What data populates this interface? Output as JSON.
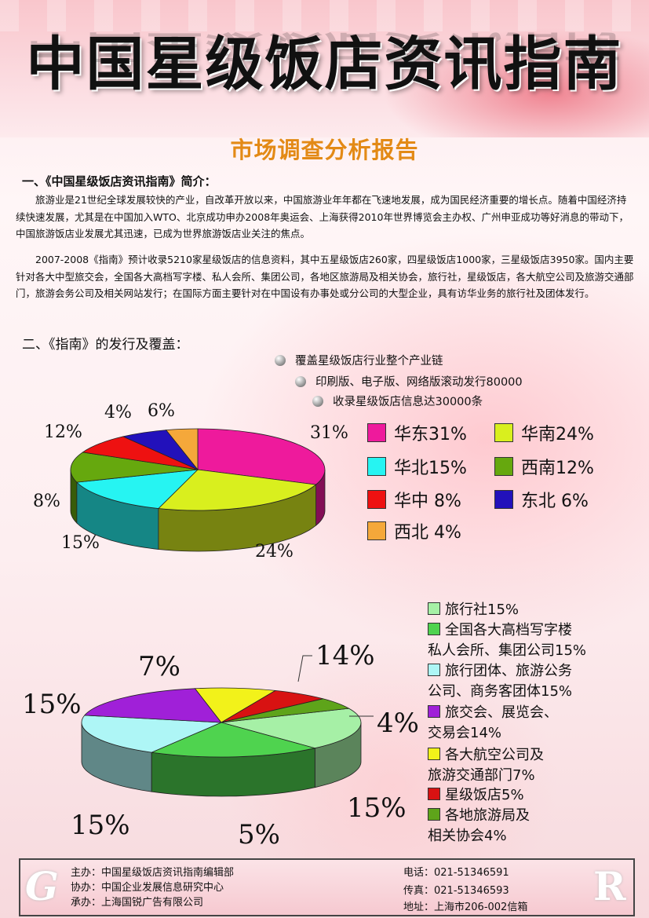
{
  "header": {
    "title": "中国星级饭店资讯指南",
    "subtitle": "市场调查分析报告"
  },
  "section1": {
    "heading": "一、《中国星级饭店资讯指南》简介：",
    "para1": "旅游业是21世纪全球发展较快的产业，自改革开放以来，中国旅游业年年都在飞速地发展，成为国民经济重要的增长点。随着中国经济持续快速发展，尤其是在中国加入WTO、北京成功申办2008年奥运会、上海获得2010年世界博览会主办权、广州申亚成功等好消息的带动下，中国旅游饭店业发展尤其迅速，已成为世界旅游饭店业关注的焦点。",
    "para2": "2007-2008《指南》预计收录5210家星级饭店的信息资料，其中五星级饭店260家，四星级饭店1000家，三星级饭店3950家。国内主要针对各大中型旅交会，全国各大高档写字楼、私人会所、集团公司，各地区旅游局及相关协会，旅行社，星级饭店，各大航空公司及旅游交通部门，旅游会务公司及相关网站发行；在国际方面主要针对在中国设有办事处或分公司的大型企业，具有访华业务的旅行社及团体发行。"
  },
  "section2": {
    "heading": "二、《指南》的发行及覆盖：",
    "bullets": [
      "覆盖星级饭店行业整个产业链",
      "印刷版、电子版、网络版滚动发行80000",
      "收录星级饭店信息达30000条"
    ]
  },
  "chart_data": [
    {
      "type": "pie",
      "categories": [
        "华东",
        "华南",
        "华北",
        "西南",
        "华中",
        "东北",
        "西北"
      ],
      "values": [
        31,
        24,
        15,
        12,
        8,
        6,
        4
      ],
      "colors": [
        "#ee1a9c",
        "#d9ef1e",
        "#26f4f2",
        "#66a80e",
        "#ee1111",
        "#2211bb",
        "#f5a83a"
      ],
      "data_labels": [
        "31%",
        "24%",
        "15%",
        "12%",
        "8%",
        "6%",
        "4%"
      ],
      "legend": [
        "华东31%",
        "华南24%",
        "华北15%",
        "西南12%",
        "华中 8%",
        "东北 6%",
        "西北 4%"
      ]
    },
    {
      "type": "pie",
      "categories": [
        "旅行社",
        "全国各大高档写字楼私人会所、集团公司",
        "旅行团体、旅游公务公司、商务客团体",
        "旅交会、展览会、交易会",
        "各大航空公司及旅游交通部门",
        "星级饭店",
        "各地旅游局及相关协会"
      ],
      "values": [
        15,
        15,
        15,
        14,
        7,
        5,
        4
      ],
      "colors": [
        "#a6f0a6",
        "#4fd34f",
        "#aef6f6",
        "#a020d8",
        "#f2f21a",
        "#d81212",
        "#5ea41a"
      ],
      "data_labels": [
        "15%",
        "15%",
        "15%",
        "14%",
        "7%",
        "5%",
        "4%"
      ],
      "legend": [
        [
          "旅行社15%"
        ],
        [
          "全国各大高档写字楼",
          "私人会所、集团公司15%"
        ],
        [
          "旅行团体、旅游公务",
          "公司、商务客团体15%"
        ],
        [
          "旅交会、展览会、",
          "交易会14%"
        ],
        [
          "各大航空公司及",
          "旅游交通部门7%"
        ],
        [
          "星级饭店5%"
        ],
        [
          "各地旅游局及",
          "相关协会4%"
        ]
      ]
    }
  ],
  "footer": {
    "sponsor": "主办：中国星级饭店资讯指南编辑部",
    "co_organizer": "协办：中国企业发展信息研究中心",
    "undertaker": "承办：上海国锐广告有限公司",
    "phone": "电话：021-51346591",
    "fax": "传真：021-51346593",
    "address": "地址：上海市206-002信箱",
    "deco_left": "G",
    "deco_right": "R"
  }
}
